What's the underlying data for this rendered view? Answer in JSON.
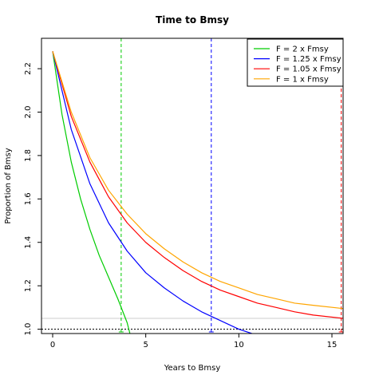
{
  "chart_data": {
    "type": "line",
    "title": "Time to Bmsy",
    "xlabel": "Years to Bmsy",
    "ylabel": "Proportion of Bmsy",
    "xlim": [
      -0.6,
      15.6
    ],
    "ylim": [
      0.98,
      2.34
    ],
    "x_ticks": [
      0,
      5,
      10,
      15
    ],
    "y_ticks": [
      1.0,
      1.2,
      1.4,
      1.6,
      1.8,
      2.0,
      2.2
    ],
    "y_tick_labels": [
      "1.0",
      "1.2",
      "1.4",
      "1.6",
      "1.8",
      "2.0",
      "2.2"
    ],
    "legend_position": "top-right",
    "series": [
      {
        "name": "F = 2 x Fmsy",
        "color": "#00cc00",
        "x": [
          0,
          0.5,
          1,
          1.5,
          2,
          2.5,
          3,
          3.5,
          4,
          4.15
        ],
        "y": [
          2.28,
          1.99,
          1.77,
          1.6,
          1.46,
          1.34,
          1.24,
          1.14,
          1.03,
          0.98
        ]
      },
      {
        "name": "F = 1.25 x Fmsy",
        "color": "#0000ff",
        "x": [
          0,
          1,
          2,
          3,
          4,
          5,
          6,
          7,
          8,
          9,
          10,
          10.7
        ],
        "y": [
          2.28,
          1.92,
          1.67,
          1.49,
          1.36,
          1.26,
          1.19,
          1.13,
          1.08,
          1.04,
          1.0,
          0.98
        ]
      },
      {
        "name": "F = 1.05 x Fmsy",
        "color": "#ff0000",
        "x": [
          0,
          1,
          2,
          3,
          4,
          5,
          6,
          7,
          8,
          9,
          10,
          11,
          12,
          13,
          14,
          15.6
        ],
        "y": [
          2.28,
          1.98,
          1.77,
          1.61,
          1.49,
          1.4,
          1.33,
          1.27,
          1.22,
          1.18,
          1.15,
          1.12,
          1.1,
          1.08,
          1.065,
          1.05
        ]
      },
      {
        "name": "F = 1 x Fmsy",
        "color": "#ffa500",
        "x": [
          0,
          1,
          2,
          3,
          4,
          5,
          6,
          7,
          8,
          9,
          10,
          11,
          12,
          13,
          14,
          15.6
        ],
        "y": [
          2.28,
          2.0,
          1.79,
          1.64,
          1.53,
          1.44,
          1.37,
          1.31,
          1.26,
          1.22,
          1.19,
          1.16,
          1.14,
          1.12,
          1.11,
          1.095
        ]
      }
    ],
    "vlines": [
      {
        "x": 3.68,
        "color": "#00cc00",
        "style": "dashed"
      },
      {
        "x": 8.52,
        "color": "#0000ff",
        "style": "dashed"
      },
      {
        "x": 15.5,
        "color": "#ff0000",
        "style": "dashed"
      }
    ],
    "hlines": [
      {
        "y": 1.0,
        "color": "#000000",
        "style": "dotted"
      },
      {
        "y": 1.05,
        "color": "#cccccc",
        "style": "solid"
      }
    ]
  }
}
